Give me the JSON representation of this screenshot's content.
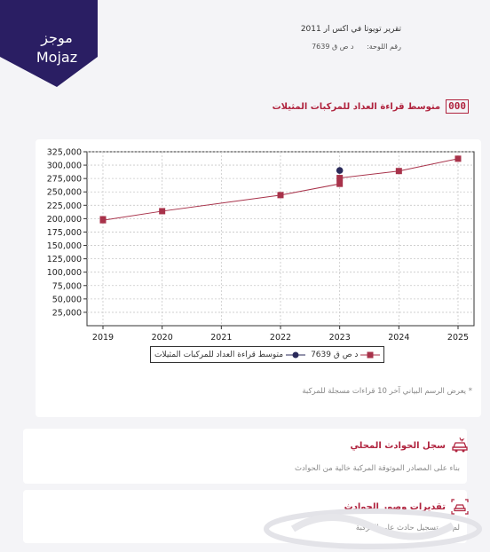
{
  "logo": {
    "arabic": "موجز",
    "latin": "Mojaz",
    "color": "#2a1e63"
  },
  "report": {
    "title": "تقرير تويوتا في اكس ار 2011",
    "plate_label": "رقم اللوحة:",
    "plate_value": "د ص ق 7639"
  },
  "mileage_section": {
    "title": "متوسط قراءة العداد للمركبات المثيلات",
    "icon": "odometer-icon",
    "icon_digits": "000"
  },
  "chart_data": {
    "type": "line",
    "x": [
      2019,
      2020,
      2021,
      2022,
      2023,
      2024,
      2025
    ],
    "xlim": [
      2019,
      2025
    ],
    "ylim": [
      0,
      325000
    ],
    "yticks": [
      25000,
      50000,
      75000,
      100000,
      125000,
      150000,
      175000,
      200000,
      225000,
      250000,
      275000,
      300000,
      325000
    ],
    "ytick_labels": [
      "25,000",
      "50,000",
      "75,000",
      "100,000",
      "125,000",
      "150,000",
      "175,000",
      "200,000",
      "225,000",
      "250,000",
      "275,000",
      "300,000",
      "325,000"
    ],
    "xtick_labels": [
      "2019",
      "2020",
      "2021",
      "2022",
      "2023",
      "2024",
      "2025"
    ],
    "grid": true,
    "legend_position": "bottom",
    "series": [
      {
        "name": "د ص ق 7639",
        "color": "#a8324a",
        "marker": "square",
        "points": [
          [
            2019,
            199000
          ],
          [
            2019,
            197000
          ],
          [
            2020,
            214000
          ],
          [
            2022,
            244000
          ],
          [
            2023,
            265000
          ],
          [
            2023,
            276000
          ],
          [
            2024,
            289000
          ],
          [
            2025,
            312000
          ]
        ]
      },
      {
        "name": "متوسط قراءة العداد للمركبات المثيلات",
        "color": "#2a2a5a",
        "marker": "circle",
        "points": [
          [
            2023,
            290000
          ]
        ]
      }
    ]
  },
  "chart_note": "* يعرض الرسم البياني آخر 10 قراءات مسجلة للمركبة",
  "accidents_local": {
    "title": "سجل الحوادث المحلي",
    "icon": "car-crash-icon",
    "text": "بناء على المصادر الموثوقة المركبة خالية من الحوادث"
  },
  "accident_estimates": {
    "title": "تقديرات وصور الحوادث",
    "icon": "car-photo-icon",
    "text": "لم يتم تسجيل حادث على المركبة"
  }
}
